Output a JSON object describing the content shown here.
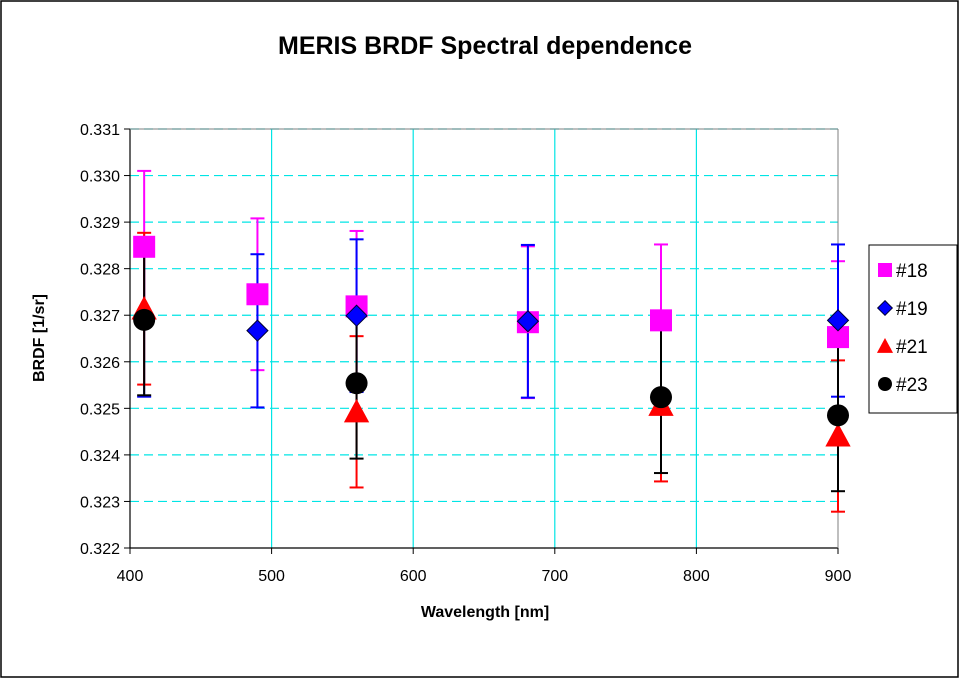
{
  "chart_data": {
    "type": "scatter",
    "title": "MERIS BRDF Spectral dependence",
    "xlabel": "Wavelength [nm]",
    "ylabel": "BRDF  [1/sr]",
    "xlim": [
      400,
      900
    ],
    "ylim": [
      0.322,
      0.331
    ],
    "xticks": [
      "400",
      "500",
      "600",
      "700",
      "800",
      "900"
    ],
    "yticks": [
      "0.322",
      "0.323",
      "0.324",
      "0.325",
      "0.326",
      "0.327",
      "0.328",
      "0.329",
      "0.330",
      "0.331"
    ],
    "grid": true,
    "legend_position": "right",
    "series": [
      {
        "name": "#18",
        "marker": "square",
        "color": "#ff00ff",
        "points": [
          {
            "x": 410,
            "y": 0.32847,
            "low": 0.32685,
            "high": 0.3301
          },
          {
            "x": 490,
            "y": 0.32745,
            "low": 0.32582,
            "high": 0.32908
          },
          {
            "x": 560,
            "y": 0.32719,
            "low": 0.32557,
            "high": 0.32881
          },
          {
            "x": 681,
            "y": 0.32685,
            "low": 0.32522,
            "high": 0.32848
          },
          {
            "x": 775,
            "y": 0.32689,
            "low": 0.32526,
            "high": 0.32852
          },
          {
            "x": 900,
            "y": 0.32653,
            "low": 0.3249,
            "high": 0.32816
          }
        ]
      },
      {
        "name": "#19",
        "marker": "diamond",
        "color": "#0000ff",
        "points": [
          {
            "x": 410,
            "y": 0.32695,
            "low": 0.32525,
            "high": 0.32865
          },
          {
            "x": 490,
            "y": 0.32667,
            "low": 0.32502,
            "high": 0.32831
          },
          {
            "x": 560,
            "y": 0.32699,
            "low": 0.32535,
            "high": 0.32863
          },
          {
            "x": 681,
            "y": 0.32687,
            "low": 0.32523,
            "high": 0.32851
          },
          {
            "x": 900,
            "y": 0.32689,
            "low": 0.32525,
            "high": 0.32852
          }
        ]
      },
      {
        "name": "#21",
        "marker": "triangle",
        "color": "#ff0000",
        "points": [
          {
            "x": 410,
            "y": 0.32714,
            "low": 0.32551,
            "high": 0.32877
          },
          {
            "x": 560,
            "y": 0.32493,
            "low": 0.3233,
            "high": 0.32655
          },
          {
            "x": 775,
            "y": 0.32507,
            "low": 0.32343,
            "high": 0.3267
          },
          {
            "x": 900,
            "y": 0.32441,
            "low": 0.32278,
            "high": 0.32603
          }
        ]
      },
      {
        "name": "#23",
        "marker": "circle",
        "color": "#000000",
        "points": [
          {
            "x": 410,
            "y": 0.3269,
            "low": 0.32528,
            "high": 0.32852
          },
          {
            "x": 560,
            "y": 0.32554,
            "low": 0.32392,
            "high": 0.32715
          },
          {
            "x": 775,
            "y": 0.32524,
            "low": 0.32361,
            "high": 0.32687
          },
          {
            "x": 900,
            "y": 0.32485,
            "low": 0.32322,
            "high": 0.32648
          }
        ]
      }
    ]
  }
}
